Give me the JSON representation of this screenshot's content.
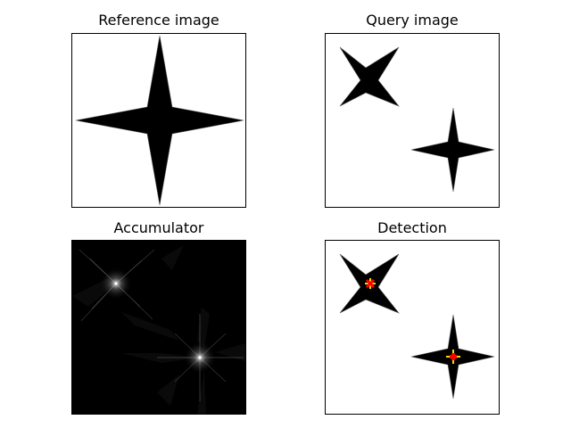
{
  "panels": {
    "reference": {
      "title": "Reference image"
    },
    "query": {
      "title": "Query image"
    },
    "accumulator": {
      "title": "Accumulator"
    },
    "detection": {
      "title": "Detection"
    }
  },
  "colors": {
    "background": "#ffffff",
    "shape": "#000000",
    "accumulator_background": "#000000",
    "accumulator_peak": "#ffffff",
    "detection_marker_fill": "#ff0000",
    "detection_marker_edge": "#ffd800"
  },
  "icons": {
    "shape": "four-point-star-icon",
    "detection_marker": "plus-marker-icon"
  }
}
